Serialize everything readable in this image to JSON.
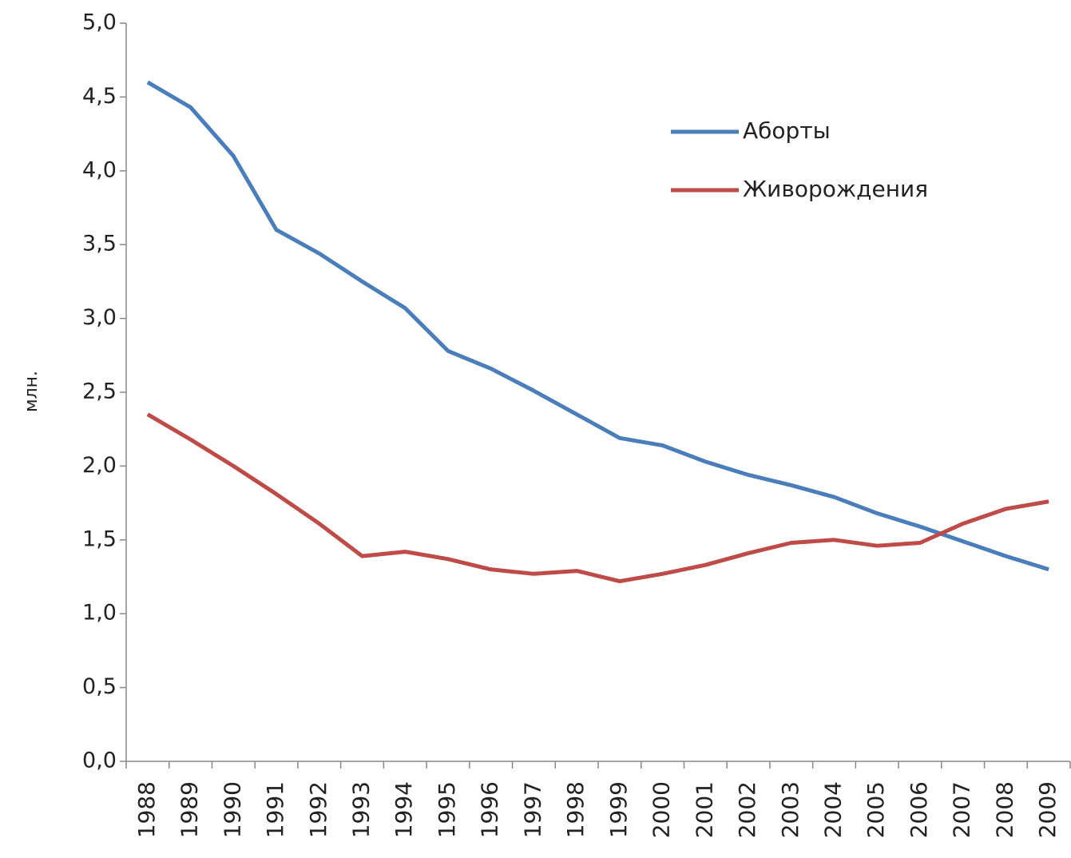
{
  "chart_data": {
    "type": "line",
    "y_label": "млн.",
    "categories": [
      "1988",
      "1989",
      "1990",
      "1991",
      "1992",
      "1993",
      "1994",
      "1995",
      "1996",
      "1997",
      "1998",
      "1999",
      "2000",
      "2001",
      "2002",
      "2003",
      "2004",
      "2005",
      "2006",
      "2007",
      "2008",
      "2009"
    ],
    "series": [
      {
        "name": "Аборты",
        "color": "#4a7ebb",
        "values": [
          4.6,
          4.43,
          4.1,
          3.6,
          3.44,
          3.25,
          3.07,
          2.78,
          2.66,
          2.51,
          2.35,
          2.19,
          2.14,
          2.03,
          1.94,
          1.87,
          1.79,
          1.68,
          1.59,
          1.49,
          1.39,
          1.3
        ]
      },
      {
        "name": "Живорождения",
        "color": "#be4b48",
        "values": [
          2.35,
          2.18,
          2.0,
          1.81,
          1.61,
          1.39,
          1.42,
          1.37,
          1.3,
          1.27,
          1.29,
          1.22,
          1.27,
          1.33,
          1.41,
          1.48,
          1.5,
          1.46,
          1.48,
          1.61,
          1.71,
          1.76
        ]
      }
    ],
    "ylim": [
      0,
      5
    ],
    "yticks": [
      {
        "value": 0,
        "label": "0,0"
      },
      {
        "value": 0.5,
        "label": "0,5"
      },
      {
        "value": 1,
        "label": "1,0"
      },
      {
        "value": 1.5,
        "label": "1,5"
      },
      {
        "value": 2,
        "label": "2,0"
      },
      {
        "value": 2.5,
        "label": "2,5"
      },
      {
        "value": 3,
        "label": "3,0"
      },
      {
        "value": 3.5,
        "label": "3,5"
      },
      {
        "value": 4,
        "label": "4,0"
      },
      {
        "value": 4.5,
        "label": "4,5"
      },
      {
        "value": 5,
        "label": "5,0"
      }
    ],
    "grid": false,
    "legend": "upper right"
  }
}
